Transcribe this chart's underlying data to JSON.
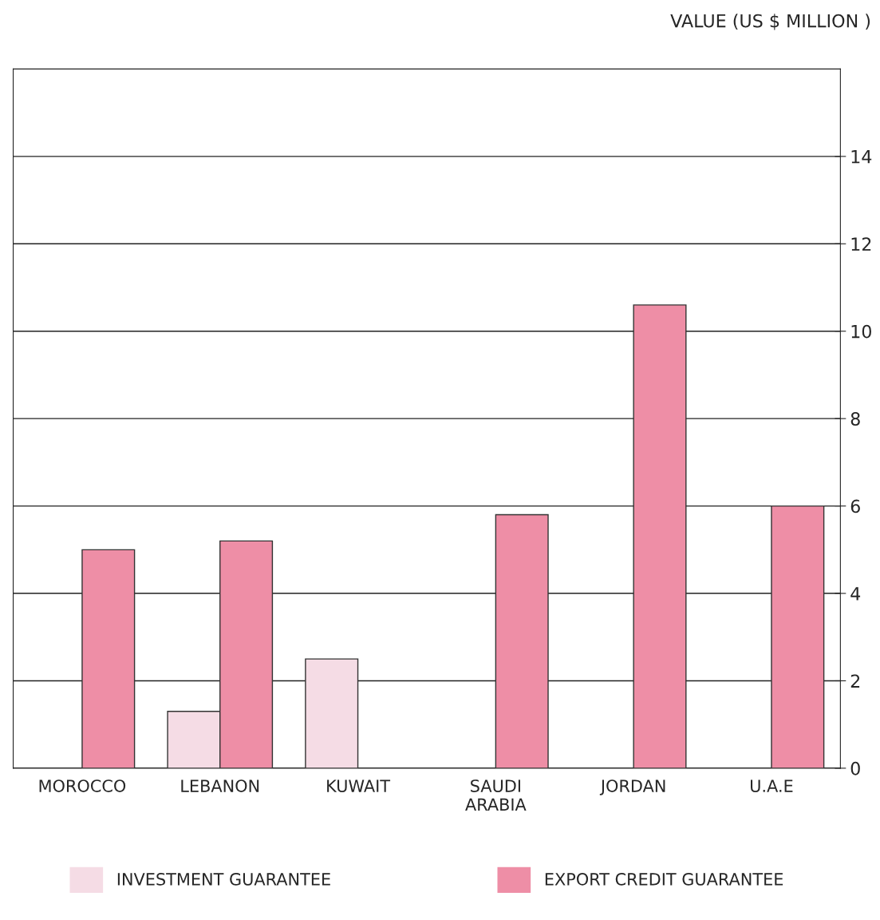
{
  "chart_data": {
    "type": "bar",
    "ylabel": "VALUE (US $ MILLION )",
    "categories": [
      "MOROCCO",
      "LEBANON",
      "KUWAIT",
      "SAUDI\nARABIA",
      "JORDAN",
      "U.A.E"
    ],
    "series": [
      {
        "name": "INVESTMENT GUARANTEE",
        "color": "#f5dce5",
        "values": [
          null,
          1.3,
          2.5,
          null,
          null,
          null
        ]
      },
      {
        "name": "EXPORT CREDIT GUARANTEE",
        "color": "#ee8ea6",
        "values": [
          5.0,
          5.2,
          null,
          5.8,
          10.6,
          6.0
        ]
      }
    ],
    "ylim": [
      0,
      16
    ],
    "yticks": [
      0,
      2,
      4,
      6,
      8,
      10,
      12,
      14
    ],
    "grid": "y",
    "legend": "bottom"
  }
}
